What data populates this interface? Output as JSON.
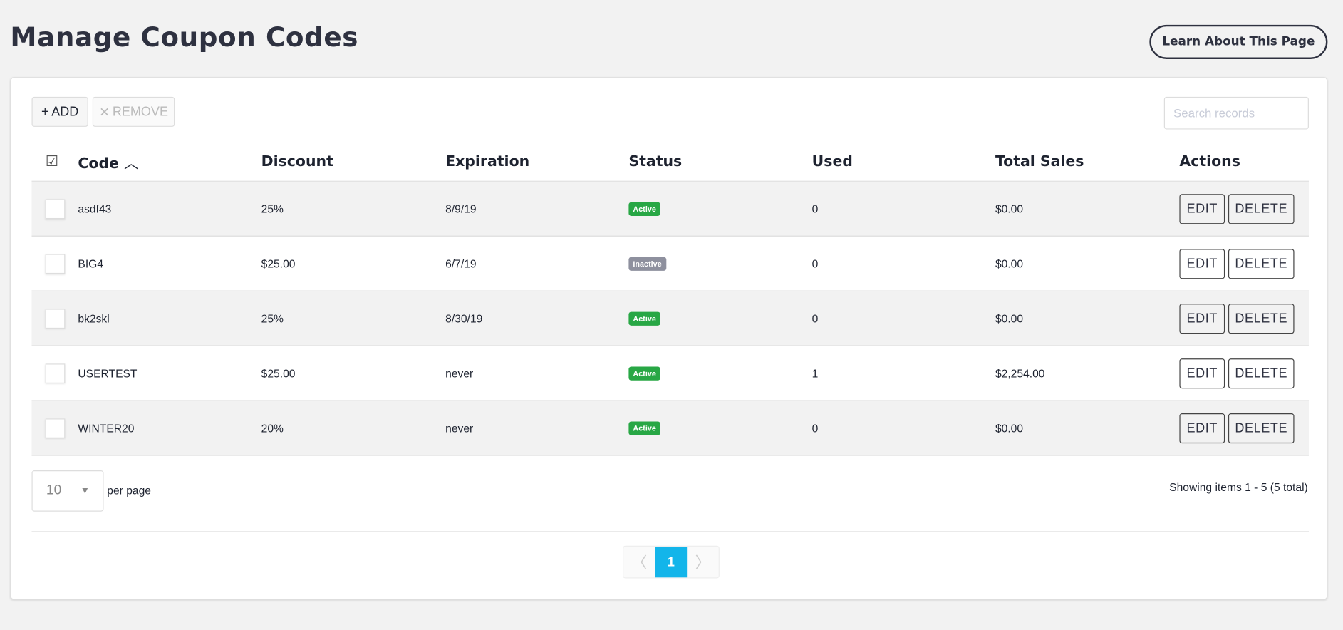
{
  "page": {
    "title": "Manage Coupon Codes",
    "learn_button": "Learn About This Page"
  },
  "toolbar": {
    "add_label": "ADD",
    "add_icon": "plus-icon",
    "remove_label": "REMOVE",
    "remove_icon": "x-icon",
    "search_placeholder": "Search records"
  },
  "table": {
    "columns": [
      "Code",
      "Discount",
      "Expiration",
      "Status",
      "Used",
      "Total Sales",
      "Actions"
    ],
    "sort": {
      "column": "Code",
      "direction": "ascending"
    },
    "rows": [
      {
        "code": "asdf43",
        "discount": "25%",
        "expiration": "8/9/19",
        "status": "Active",
        "used": "0",
        "total_sales": "$0.00"
      },
      {
        "code": "BIG4",
        "discount": "$25.00",
        "expiration": "6/7/19",
        "status": "Inactive",
        "used": "0",
        "total_sales": "$0.00"
      },
      {
        "code": "bk2skl",
        "discount": "25%",
        "expiration": "8/30/19",
        "status": "Active",
        "used": "0",
        "total_sales": "$0.00"
      },
      {
        "code": "USERTEST",
        "discount": "$25.00",
        "expiration": "never",
        "status": "Active",
        "used": "1",
        "total_sales": "$2,254.00"
      },
      {
        "code": "WINTER20",
        "discount": "20%",
        "expiration": "never",
        "status": "Active",
        "used": "0",
        "total_sales": "$0.00"
      }
    ],
    "edit_label": "EDIT",
    "delete_label": "DELETE"
  },
  "footer": {
    "per_page_value": "10",
    "per_page_label": "per page",
    "showing": "Showing items 1 - 5 (5 total)",
    "current_page": "1"
  },
  "colors": {
    "active": "#28a745",
    "inactive": "#8e909e",
    "accent": "#13b5ea"
  }
}
